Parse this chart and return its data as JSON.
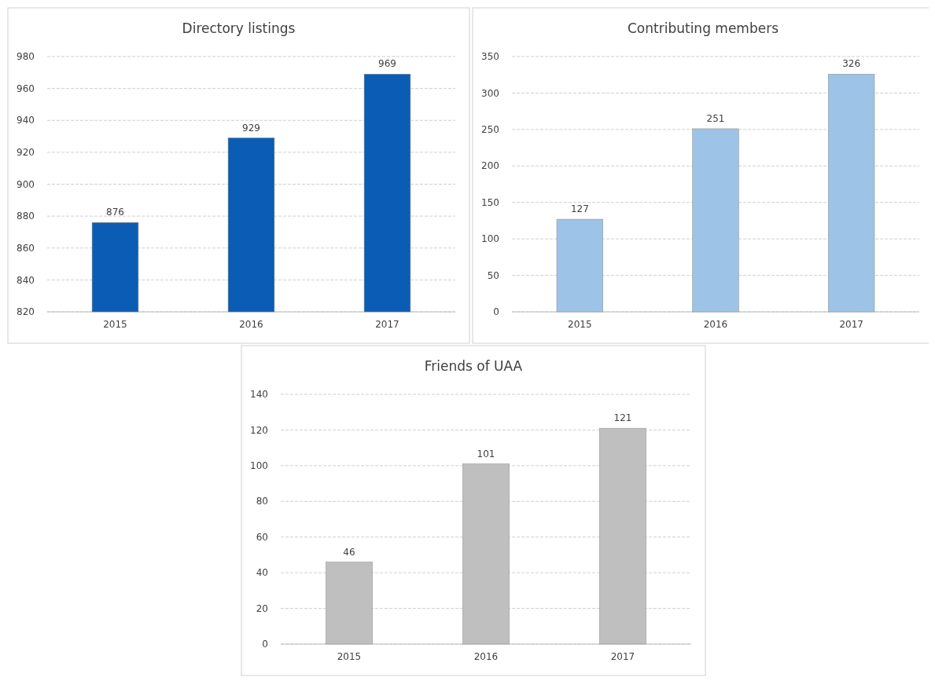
{
  "chart_data": [
    {
      "type": "bar",
      "title": "Directory listings",
      "categories": [
        "2015",
        "2016",
        "2017"
      ],
      "values": [
        876,
        929,
        969
      ],
      "color": "#0b5cb5",
      "ylim": [
        820,
        980
      ],
      "yticks": [
        820,
        840,
        860,
        880,
        900,
        920,
        940,
        960,
        980
      ],
      "grid": "y",
      "data_labels": true
    },
    {
      "type": "bar",
      "title": "Contributing members",
      "categories": [
        "2015",
        "2016",
        "2017"
      ],
      "values": [
        127,
        251,
        326
      ],
      "color": "#9dc3e6",
      "ylim": [
        0,
        350
      ],
      "yticks": [
        0,
        50,
        100,
        150,
        200,
        250,
        300,
        350
      ],
      "grid": "y",
      "data_labels": true
    },
    {
      "type": "bar",
      "title": "Friends of UAA",
      "categories": [
        "2015",
        "2016",
        "2017"
      ],
      "values": [
        46,
        101,
        121
      ],
      "color": "#bfbfbf",
      "ylim": [
        0,
        140
      ],
      "yticks": [
        0,
        20,
        40,
        60,
        80,
        100,
        120,
        140
      ],
      "grid": "y",
      "data_labels": true
    }
  ]
}
